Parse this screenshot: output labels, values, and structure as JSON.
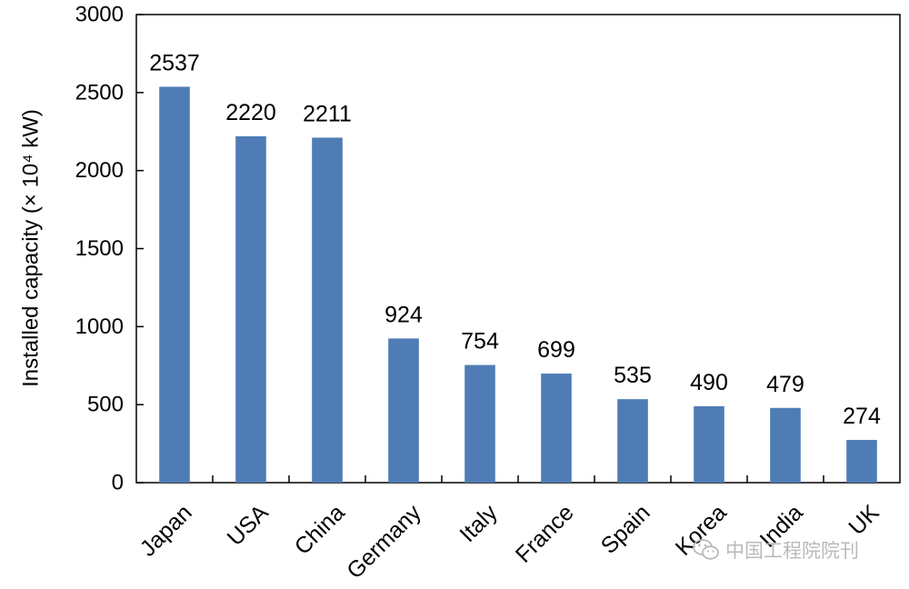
{
  "chart_data": {
    "type": "bar",
    "categories": [
      "Japan",
      "USA",
      "China",
      "Germany",
      "Italy",
      "France",
      "Spain",
      "Korea",
      "India",
      "UK"
    ],
    "values": [
      2537,
      2220,
      2211,
      924,
      754,
      699,
      535,
      490,
      479,
      274
    ],
    "data_labels": [
      "2537",
      "2220",
      "2211",
      "924",
      "754",
      "699",
      "535",
      "490",
      "479",
      "274"
    ],
    "ylabel": "Installed capacity (× 10⁴ kW)",
    "ylim": [
      0,
      3000
    ],
    "yticks": [
      0,
      500,
      1000,
      1500,
      2000,
      2500,
      3000
    ],
    "ytick_labels": [
      "0",
      "500",
      "1000",
      "1500",
      "2000",
      "2500",
      "3000"
    ],
    "grid": false,
    "bar_color": "#4f7cb5"
  },
  "watermark": {
    "icon": "wechat-icon",
    "text": "中国工程院院刊"
  }
}
